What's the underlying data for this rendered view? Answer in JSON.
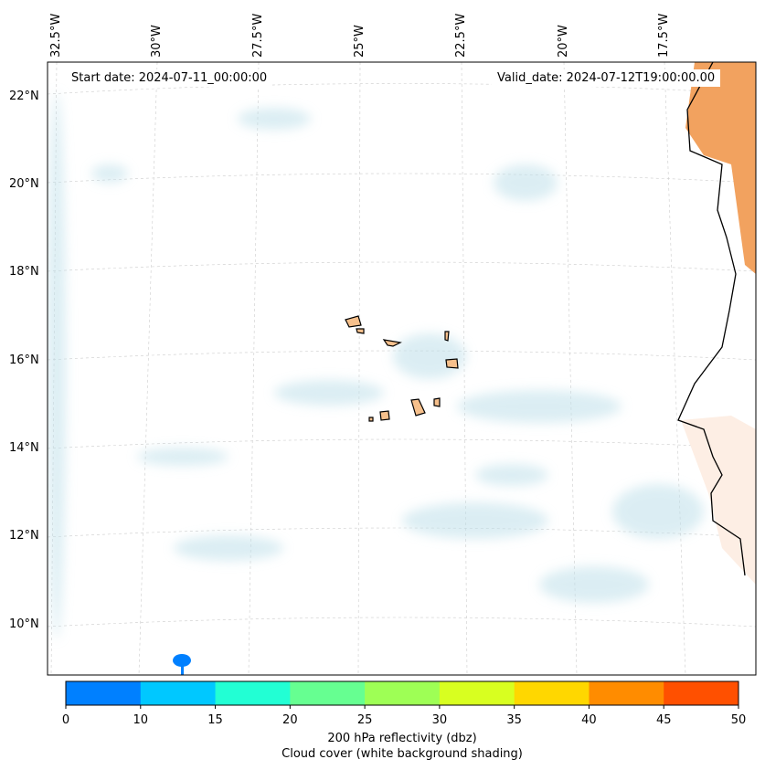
{
  "map": {
    "start_date": "Start date: 2024-07-11_00:00:00",
    "valid_date": "Valid_date: 2024-07-12T19:00:00.00",
    "lon_labels": [
      "32.5°W",
      "30°W",
      "27.5°W",
      "25°W",
      "22.5°W",
      "20°W",
      "17.5°W"
    ],
    "lat_labels": [
      "22°N",
      "20°N",
      "18°N",
      "16°N",
      "14°N",
      "12°N",
      "10°N"
    ]
  },
  "colorbar": {
    "ticks": [
      "0",
      "10",
      "15",
      "20",
      "25",
      "30",
      "35",
      "40",
      "45",
      "50"
    ],
    "colors": [
      "#0080ff",
      "#00c8ff",
      "#22ffd4",
      "#66ff91",
      "#9eff55",
      "#d8ff20",
      "#ffd700",
      "#ff8c00",
      "#ff5000"
    ],
    "label1": "200 hPa reflectivity (dbz)",
    "label2": "Cloud cover (white background shading)"
  }
}
